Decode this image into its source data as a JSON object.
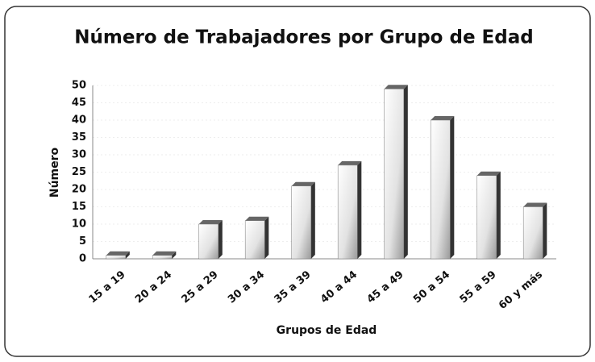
{
  "chart_data": {
    "type": "bar",
    "title": "Número de Trabajadores por Grupo de Edad",
    "x_label": "Grupos de Edad",
    "y_label": "Número",
    "categories": [
      "15 a 19",
      "20 a 24",
      "25 a 29",
      "30 a 34",
      "35 a 39",
      "40 a 44",
      "45 a 49",
      "50 a 54",
      "55 a 59",
      "60 y más"
    ],
    "values": [
      1,
      1,
      10,
      11,
      21,
      27,
      49,
      40,
      24,
      15
    ],
    "color": "#d9d9d9",
    "ylim": [
      0,
      50
    ],
    "yticks": [
      0,
      5,
      10,
      15,
      20,
      25,
      30,
      35,
      40,
      45,
      50
    ],
    "grid": true
  }
}
